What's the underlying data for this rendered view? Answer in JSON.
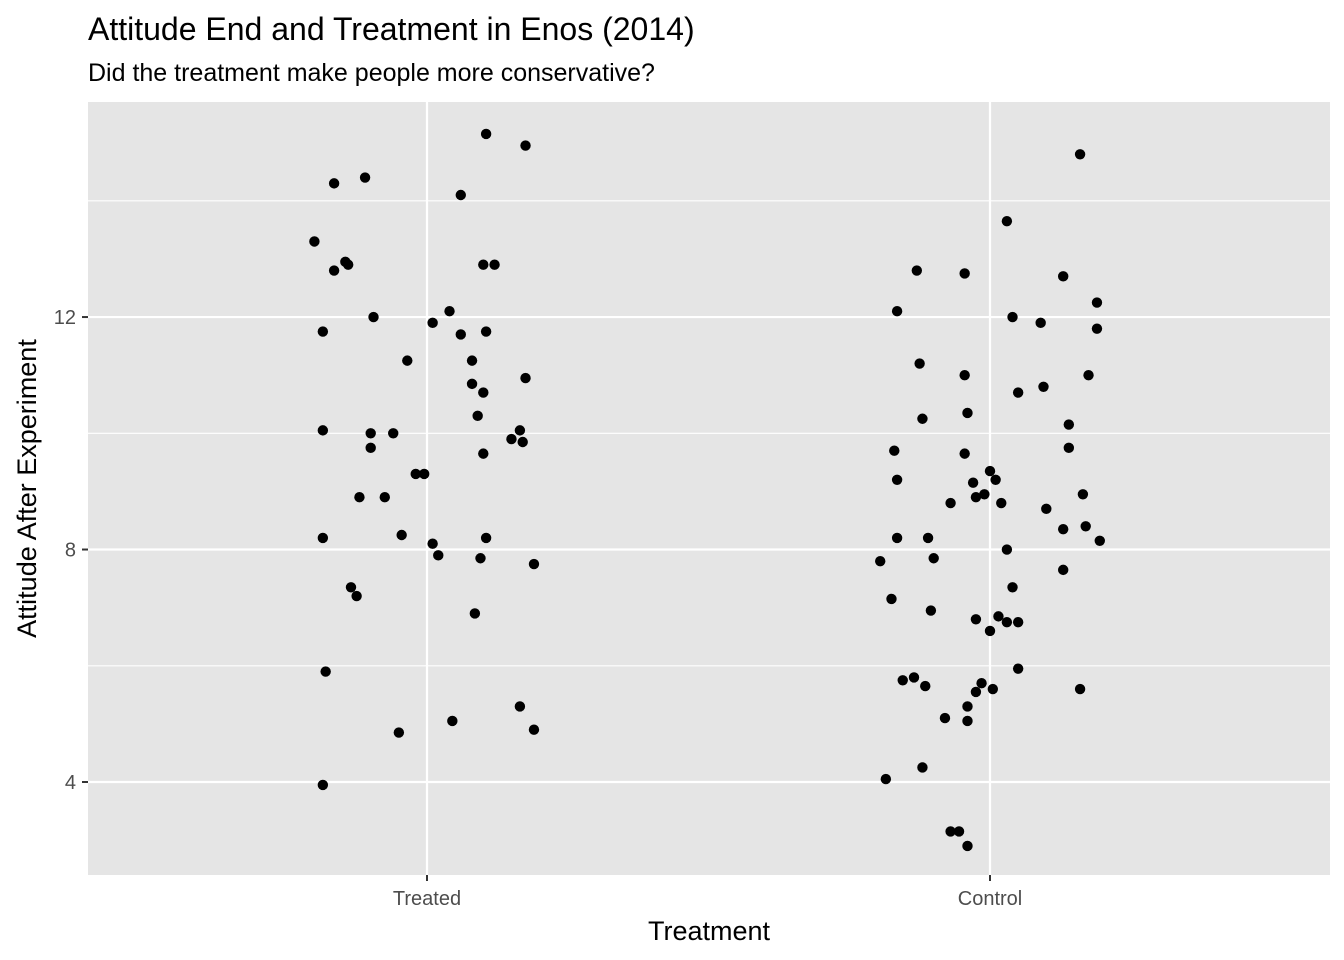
{
  "title": "Attitude End and Treatment in Enos (2014)",
  "subtitle": "Did the treatment make people more conservative?",
  "chart_data": {
    "type": "scatter",
    "title": "Attitude End and Treatment in Enos (2014)",
    "subtitle": "Did the treatment make people more conservative?",
    "xlabel": "Treatment",
    "ylabel": "Attitude After Experiment",
    "x_type": "categorical",
    "categories": [
      "Treated",
      "Control"
    ],
    "jitter": true,
    "y_ticks": [
      4,
      8,
      12
    ],
    "ylim": [
      2.4,
      15.7
    ],
    "grid": true,
    "panel_color": "#e5e5e5",
    "grid_color": "#ffffff",
    "point_color": "#000000",
    "series": [
      {
        "category": "Treated",
        "points": [
          {
            "x": -0.4,
            "y": 13.3
          },
          {
            "x": -0.33,
            "y": 14.3
          },
          {
            "x": -0.33,
            "y": 12.8
          },
          {
            "x": -0.29,
            "y": 12.95
          },
          {
            "x": -0.28,
            "y": 12.9
          },
          {
            "x": -0.22,
            "y": 14.4
          },
          {
            "x": -0.37,
            "y": 11.75
          },
          {
            "x": -0.19,
            "y": 12.0
          },
          {
            "x": -0.37,
            "y": 10.05
          },
          {
            "x": -0.2,
            "y": 10.0
          },
          {
            "x": -0.2,
            "y": 9.75
          },
          {
            "x": -0.12,
            "y": 10.0
          },
          {
            "x": -0.07,
            "y": 11.25
          },
          {
            "x": -0.24,
            "y": 8.9
          },
          {
            "x": -0.15,
            "y": 8.9
          },
          {
            "x": -0.04,
            "y": 9.3
          },
          {
            "x": -0.01,
            "y": 9.3
          },
          {
            "x": -0.37,
            "y": 8.2
          },
          {
            "x": -0.09,
            "y": 8.25
          },
          {
            "x": -0.27,
            "y": 7.35
          },
          {
            "x": -0.25,
            "y": 7.2
          },
          {
            "x": -0.36,
            "y": 5.9
          },
          {
            "x": -0.1,
            "y": 4.85
          },
          {
            "x": -0.37,
            "y": 3.95
          },
          {
            "x": 0.02,
            "y": 11.9
          },
          {
            "x": 0.08,
            "y": 12.1
          },
          {
            "x": 0.12,
            "y": 14.1
          },
          {
            "x": 0.21,
            "y": 15.15
          },
          {
            "x": 0.35,
            "y": 14.95
          },
          {
            "x": 0.2,
            "y": 12.9
          },
          {
            "x": 0.24,
            "y": 12.9
          },
          {
            "x": 0.12,
            "y": 11.7
          },
          {
            "x": 0.21,
            "y": 11.75
          },
          {
            "x": 0.16,
            "y": 11.25
          },
          {
            "x": 0.16,
            "y": 10.85
          },
          {
            "x": 0.2,
            "y": 10.7
          },
          {
            "x": 0.18,
            "y": 10.3
          },
          {
            "x": 0.35,
            "y": 10.95
          },
          {
            "x": 0.33,
            "y": 10.05
          },
          {
            "x": 0.3,
            "y": 9.9
          },
          {
            "x": 0.34,
            "y": 9.85
          },
          {
            "x": 0.2,
            "y": 9.65
          },
          {
            "x": 0.02,
            "y": 8.1
          },
          {
            "x": 0.04,
            "y": 7.9
          },
          {
            "x": 0.21,
            "y": 8.2
          },
          {
            "x": 0.19,
            "y": 7.85
          },
          {
            "x": 0.17,
            "y": 6.9
          },
          {
            "x": 0.38,
            "y": 7.75
          },
          {
            "x": 0.33,
            "y": 5.3
          },
          {
            "x": 0.38,
            "y": 4.9
          },
          {
            "x": 0.09,
            "y": 5.05
          }
        ]
      },
      {
        "category": "Control",
        "points": [
          {
            "x": -0.39,
            "y": 7.8
          },
          {
            "x": -0.35,
            "y": 7.15
          },
          {
            "x": -0.34,
            "y": 9.7
          },
          {
            "x": -0.33,
            "y": 12.1
          },
          {
            "x": -0.33,
            "y": 8.2
          },
          {
            "x": -0.33,
            "y": 9.2
          },
          {
            "x": -0.31,
            "y": 5.75
          },
          {
            "x": -0.37,
            "y": 4.05
          },
          {
            "x": -0.26,
            "y": 12.8
          },
          {
            "x": -0.25,
            "y": 11.2
          },
          {
            "x": -0.24,
            "y": 10.25
          },
          {
            "x": -0.22,
            "y": 8.2
          },
          {
            "x": -0.2,
            "y": 7.85
          },
          {
            "x": -0.21,
            "y": 6.95
          },
          {
            "x": -0.27,
            "y": 5.8
          },
          {
            "x": -0.23,
            "y": 5.65
          },
          {
            "x": -0.24,
            "y": 4.25
          },
          {
            "x": -0.16,
            "y": 5.1
          },
          {
            "x": -0.14,
            "y": 8.8
          },
          {
            "x": -0.14,
            "y": 3.15
          },
          {
            "x": -0.11,
            "y": 3.15
          },
          {
            "x": -0.09,
            "y": 12.75
          },
          {
            "x": -0.09,
            "y": 11.0
          },
          {
            "x": -0.09,
            "y": 9.65
          },
          {
            "x": -0.08,
            "y": 10.35
          },
          {
            "x": -0.06,
            "y": 9.15
          },
          {
            "x": -0.05,
            "y": 8.9
          },
          {
            "x": -0.05,
            "y": 6.8
          },
          {
            "x": -0.05,
            "y": 5.55
          },
          {
            "x": -0.08,
            "y": 5.3
          },
          {
            "x": -0.08,
            "y": 5.05
          },
          {
            "x": -0.08,
            "y": 2.9
          },
          {
            "x": -0.02,
            "y": 8.95
          },
          {
            "x": -0.03,
            "y": 5.7
          },
          {
            "x": 0.0,
            "y": 9.35
          },
          {
            "x": 0.02,
            "y": 9.2
          },
          {
            "x": 0.04,
            "y": 8.8
          },
          {
            "x": 0.0,
            "y": 6.6
          },
          {
            "x": 0.03,
            "y": 6.85
          },
          {
            "x": 0.01,
            "y": 5.6
          },
          {
            "x": 0.06,
            "y": 13.65
          },
          {
            "x": 0.08,
            "y": 12.0
          },
          {
            "x": 0.1,
            "y": 10.7
          },
          {
            "x": 0.06,
            "y": 8.0
          },
          {
            "x": 0.08,
            "y": 7.35
          },
          {
            "x": 0.06,
            "y": 6.75
          },
          {
            "x": 0.1,
            "y": 6.75
          },
          {
            "x": 0.1,
            "y": 5.95
          },
          {
            "x": 0.18,
            "y": 11.9
          },
          {
            "x": 0.19,
            "y": 10.8
          },
          {
            "x": 0.2,
            "y": 8.7
          },
          {
            "x": 0.26,
            "y": 12.7
          },
          {
            "x": 0.26,
            "y": 8.35
          },
          {
            "x": 0.26,
            "y": 7.65
          },
          {
            "x": 0.28,
            "y": 10.15
          },
          {
            "x": 0.28,
            "y": 9.75
          },
          {
            "x": 0.32,
            "y": 14.8
          },
          {
            "x": 0.33,
            "y": 8.95
          },
          {
            "x": 0.32,
            "y": 5.6
          },
          {
            "x": 0.35,
            "y": 11.0
          },
          {
            "x": 0.34,
            "y": 8.4
          },
          {
            "x": 0.38,
            "y": 12.25
          },
          {
            "x": 0.38,
            "y": 11.8
          },
          {
            "x": 0.39,
            "y": 8.15
          }
        ]
      }
    ]
  }
}
